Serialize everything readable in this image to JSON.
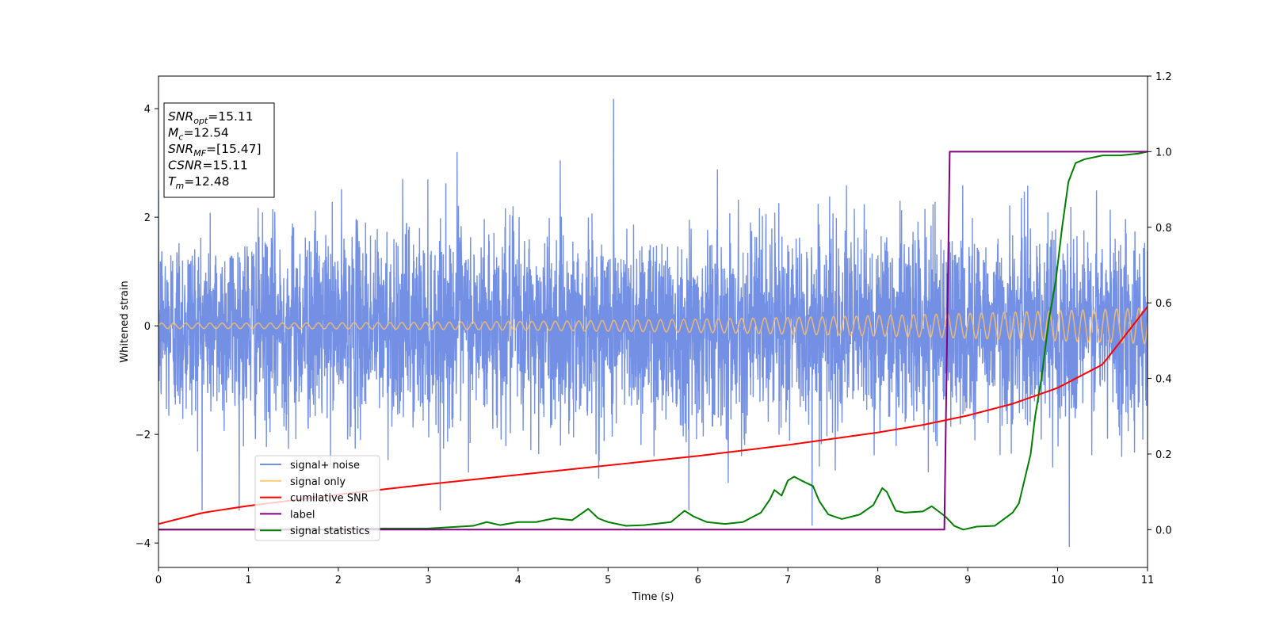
{
  "chart_data": {
    "type": "line",
    "xlabel": "Time (s)",
    "ylabel": "Whitened strain",
    "xlim": [
      0,
      11
    ],
    "ylim": [
      -4.45,
      4.6
    ],
    "y2lim": [
      -0.1,
      1.2
    ],
    "xticks": [
      "0",
      "1",
      "2",
      "3",
      "4",
      "5",
      "6",
      "7",
      "8",
      "9",
      "10",
      "11"
    ],
    "yticks": [
      "−4",
      "−2",
      "0",
      "2",
      "4"
    ],
    "y2ticks": [
      "0.0",
      "0.2",
      "0.4",
      "0.6",
      "0.8",
      "1.0",
      "1.2"
    ],
    "grid": false,
    "legend_position": "lower-left",
    "annotation": [
      {
        "sym": "SNR",
        "sub": "opt",
        "value": "=15.11"
      },
      {
        "sym": "M",
        "sub": "c",
        "value": "=12.54"
      },
      {
        "sym": "SNR",
        "sub": "MF",
        "value": "=[15.47]"
      },
      {
        "sym": "CSNR",
        "sub": "",
        "value": "=15.11"
      },
      {
        "sym": "T",
        "sub": "m",
        "value": "=12.48"
      }
    ],
    "series": [
      {
        "name": "signal+ noise",
        "color": "#5b7de0",
        "axis": "left",
        "description": "whitened noisy strain, roughly Gaussian with std ~0.9 centred at 0",
        "noise_std": 0.9,
        "samples": 4400,
        "peaks": [
          [
            5.06,
            4.18
          ],
          [
            10.13,
            -4.07
          ],
          [
            7.27,
            -3.68
          ],
          [
            3.32,
            3.2
          ],
          [
            5.9,
            -3.4
          ]
        ]
      },
      {
        "name": "signal only",
        "color": "#ffc060",
        "axis": "left",
        "description": "chirp signal with amplitude growing from ~0.05 to ~0.33",
        "amp_start": 0.05,
        "amp_end": 0.33
      },
      {
        "name": "cumilative SNR",
        "color": "#ff0000",
        "axis": "right",
        "x": [
          0,
          0.5,
          1,
          2,
          3,
          4,
          5,
          6,
          7,
          8,
          8.5,
          9,
          9.5,
          10,
          10.5,
          11
        ],
        "y": [
          0.015,
          0.045,
          0.063,
          0.093,
          0.12,
          0.145,
          0.17,
          0.195,
          0.224,
          0.257,
          0.277,
          0.302,
          0.333,
          0.375,
          0.437,
          0.59
        ]
      },
      {
        "name": "label",
        "color": "#800080",
        "axis": "right",
        "x": [
          0,
          8.74,
          8.8,
          11
        ],
        "y": [
          0,
          0,
          1,
          1
        ]
      },
      {
        "name": "signal statistics",
        "color": "#008000",
        "axis": "right",
        "x": [
          0,
          1,
          2,
          2.5,
          3,
          3.5,
          3.65,
          3.8,
          4,
          4.2,
          4.4,
          4.6,
          4.78,
          4.89,
          5.0,
          5.2,
          5.4,
          5.7,
          5.85,
          5.95,
          6.1,
          6.3,
          6.5,
          6.7,
          6.8,
          6.85,
          6.93,
          7.0,
          7.07,
          7.15,
          7.28,
          7.35,
          7.45,
          7.6,
          7.8,
          7.95,
          8.05,
          8.1,
          8.2,
          8.3,
          8.5,
          8.6,
          8.75,
          8.85,
          8.95,
          9.1,
          9.3,
          9.5,
          9.57,
          9.62,
          9.7,
          9.75,
          9.82,
          9.9,
          9.98,
          10.05,
          10.12,
          10.2,
          10.3,
          10.5,
          10.7,
          10.9,
          11.0
        ],
        "y": [
          0.0,
          0.0,
          0.0,
          0.003,
          0.003,
          0.01,
          0.02,
          0.012,
          0.02,
          0.02,
          0.03,
          0.025,
          0.055,
          0.03,
          0.02,
          0.01,
          0.012,
          0.02,
          0.05,
          0.035,
          0.02,
          0.015,
          0.02,
          0.045,
          0.08,
          0.105,
          0.09,
          0.13,
          0.14,
          0.13,
          0.115,
          0.075,
          0.04,
          0.028,
          0.04,
          0.065,
          0.11,
          0.1,
          0.05,
          0.045,
          0.048,
          0.062,
          0.035,
          0.01,
          0.0,
          0.008,
          0.01,
          0.045,
          0.07,
          0.12,
          0.2,
          0.3,
          0.4,
          0.55,
          0.66,
          0.8,
          0.92,
          0.97,
          0.98,
          0.99,
          0.99,
          0.995,
          1.0
        ]
      }
    ]
  }
}
